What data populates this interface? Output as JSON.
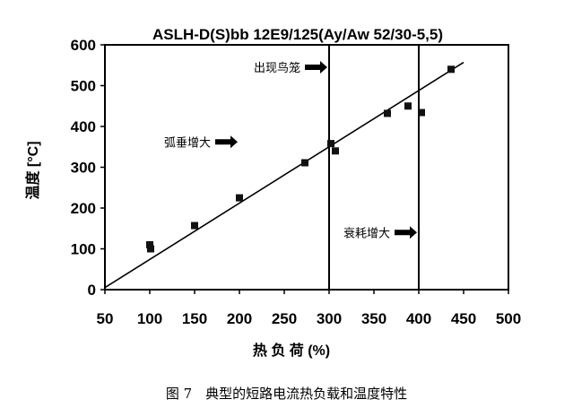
{
  "chart_data": {
    "type": "scatter",
    "title": "ASLH-D(S)bb 12E9/125(Ay/Aw 52/30-5,5)",
    "xlabel": "热 负 荷 (%)",
    "ylabel": "温度 [°C]",
    "xlim": [
      50,
      500
    ],
    "ylim": [
      0,
      600
    ],
    "x_ticks": [
      50,
      100,
      150,
      200,
      250,
      300,
      350,
      400,
      450,
      500
    ],
    "y_ticks": [
      0,
      100,
      200,
      300,
      400,
      500,
      600
    ],
    "grid": false,
    "points": [
      {
        "x": 100,
        "y": 110
      },
      {
        "x": 101,
        "y": 100
      },
      {
        "x": 150,
        "y": 157
      },
      {
        "x": 200,
        "y": 225
      },
      {
        "x": 273,
        "y": 311
      },
      {
        "x": 302,
        "y": 358
      },
      {
        "x": 307,
        "y": 340
      },
      {
        "x": 365,
        "y": 432
      },
      {
        "x": 388,
        "y": 450
      },
      {
        "x": 403,
        "y": 434
      },
      {
        "x": 436,
        "y": 540
      }
    ],
    "fit_line": {
      "from": [
        50,
        5
      ],
      "to": [
        450,
        557
      ]
    },
    "reference_lines_x": [
      300,
      400
    ],
    "annotations": [
      {
        "text": "出现鸟笼",
        "x": 300,
        "y": 545
      },
      {
        "text": "弧垂增大",
        "x": 200,
        "y": 362
      },
      {
        "text": "衰耗增大",
        "x": 400,
        "y": 140
      }
    ]
  },
  "caption": "图 7　典型的短路电流热负载和温度特性"
}
